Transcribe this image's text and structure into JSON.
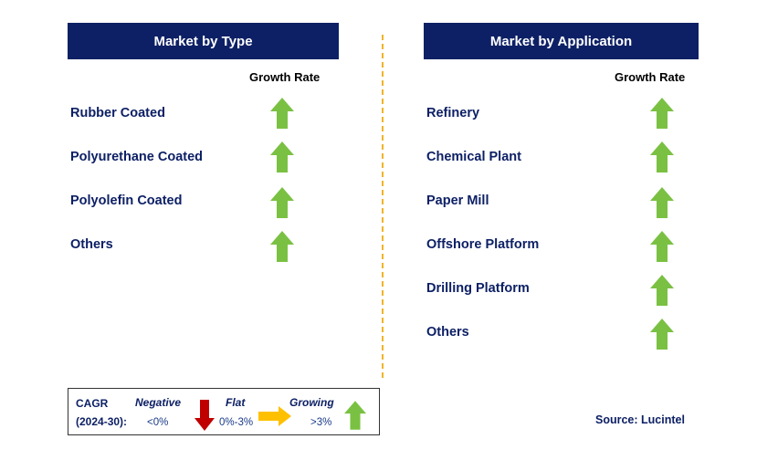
{
  "colors": {
    "header_bg": "#0d2065",
    "label_text": "#0d2065",
    "growth_arrow": "#7ac143",
    "negative_arrow": "#c00000",
    "flat_arrow": "#ffc000",
    "divider": "#f0b429"
  },
  "left_panel": {
    "title": "Market by Type",
    "column_label": "Growth Rate",
    "rows": [
      {
        "label": "Rubber Coated",
        "icon": "green-up-arrow"
      },
      {
        "label": "Polyurethane Coated",
        "icon": "green-up-arrow"
      },
      {
        "label": "Polyolefin Coated",
        "icon": "green-up-arrow"
      },
      {
        "label": "Others",
        "icon": "green-up-arrow"
      }
    ]
  },
  "right_panel": {
    "title": "Market by Application",
    "column_label": "Growth Rate",
    "rows": [
      {
        "label": "Refinery",
        "icon": "green-up-arrow"
      },
      {
        "label": "Chemical Plant",
        "icon": "green-up-arrow"
      },
      {
        "label": "Paper Mill",
        "icon": "green-up-arrow"
      },
      {
        "label": "Offshore Platform",
        "icon": "green-up-arrow"
      },
      {
        "label": "Drilling Platform",
        "icon": "green-up-arrow"
      },
      {
        "label": "Others",
        "icon": "green-up-arrow"
      }
    ]
  },
  "legend": {
    "cagr_label": "CAGR",
    "period_label": "(2024-30):",
    "negative": {
      "label": "Negative",
      "range": "<0%"
    },
    "flat": {
      "label": "Flat",
      "range": "0%-3%"
    },
    "growing": {
      "label": "Growing",
      "range": ">3%"
    }
  },
  "source": "Source: Lucintel"
}
